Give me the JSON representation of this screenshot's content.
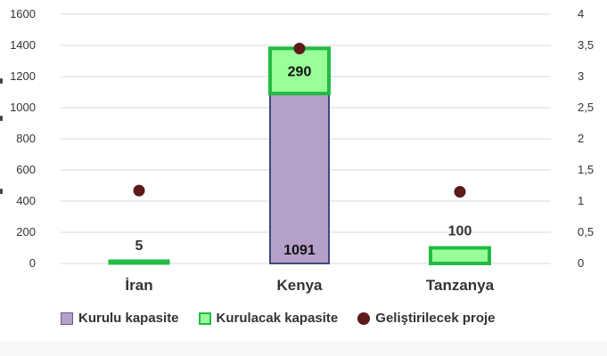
{
  "chart_data": {
    "type": "bar",
    "stacked": true,
    "categories": [
      "İran",
      "Kenya",
      "Tanzanya"
    ],
    "series": [
      {
        "name": "Kurulu kapasite",
        "axis": "left",
        "kind": "bar",
        "values": [
          0,
          1091,
          0
        ],
        "labels": [
          "",
          "1091",
          ""
        ]
      },
      {
        "name": "Kurulacak kapasite",
        "axis": "left",
        "kind": "bar",
        "values": [
          5,
          290,
          100
        ],
        "labels": [
          "5",
          "290",
          "100"
        ]
      },
      {
        "name": "Geliştirilecek proje",
        "axis": "right",
        "kind": "scatter",
        "values": [
          1.17,
          3.45,
          1.15
        ]
      }
    ],
    "y_left": {
      "ylim": [
        0,
        1600
      ],
      "ticks": [
        "0",
        "200",
        "400",
        "600",
        "800",
        "1000",
        "1200",
        "1400",
        "1600"
      ]
    },
    "y_right": {
      "ylim": [
        0,
        4
      ],
      "ticks": [
        "0",
        "0,5",
        "1",
        "1,5",
        "2",
        "2,5",
        "3",
        "3,5",
        "4"
      ]
    },
    "grid": true,
    "legend_placement": "bottom",
    "colors": {
      "installed_fill": "#b4a0c8",
      "installed_stroke": "#3d4a7a",
      "planned_fill": "#99ff99",
      "planned_stroke": "#22bb44",
      "project_dot": "#5c1a1a",
      "grid": "#d9d9d9"
    }
  },
  "legend": {
    "installed": "Kurulu kapasite",
    "planned": "Kurulacak kapasite",
    "project": "Geliştirilecek proje"
  }
}
